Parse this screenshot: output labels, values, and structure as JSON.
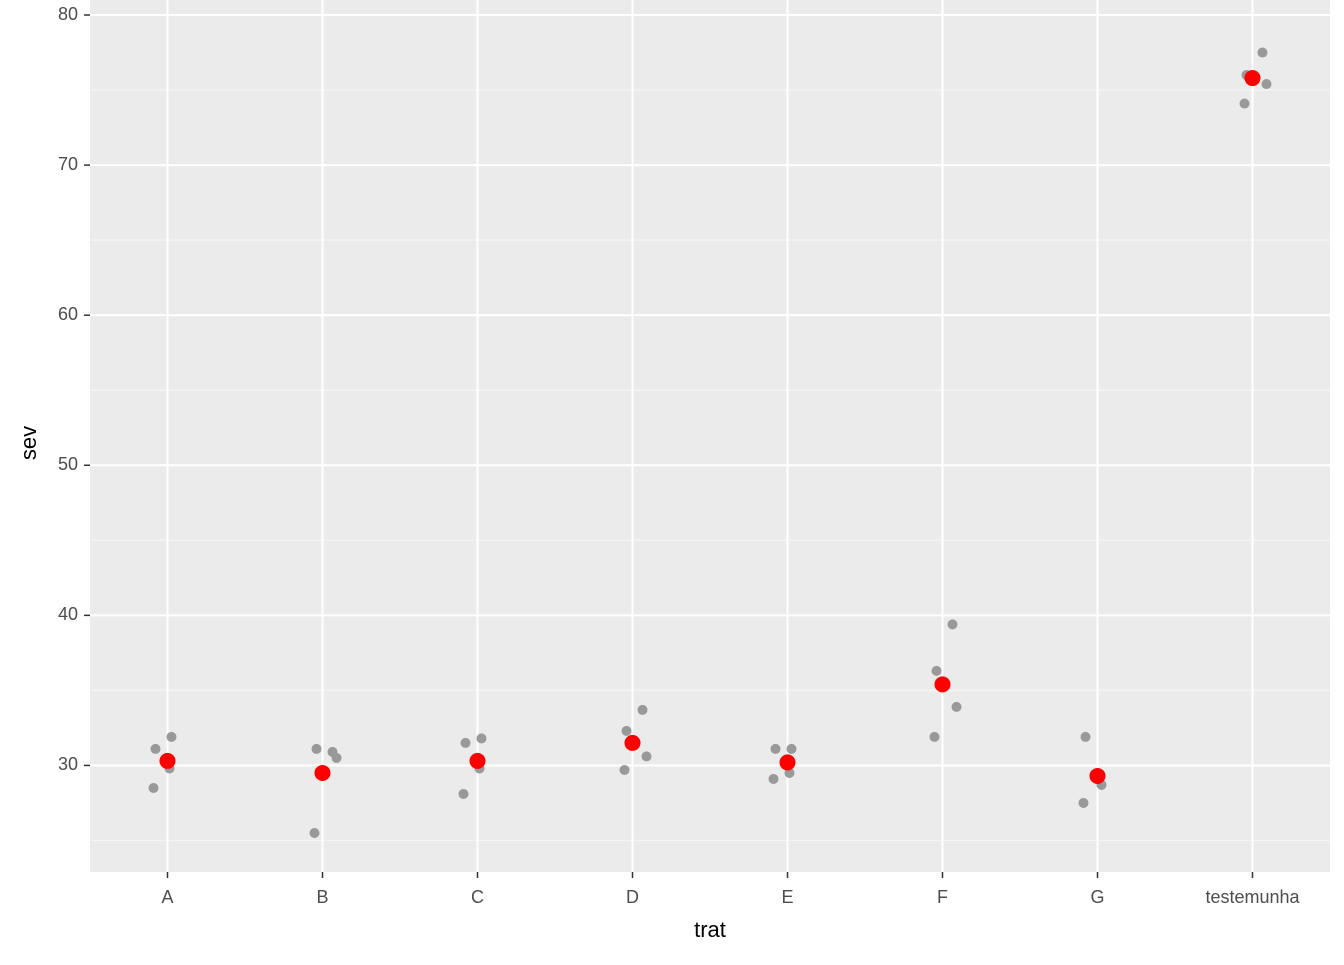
{
  "chart_data": {
    "type": "strip",
    "x_label": "trat",
    "y_label": "sev",
    "categories": [
      "A",
      "B",
      "C",
      "D",
      "E",
      "F",
      "G",
      "testemunha"
    ],
    "points": [
      [
        31.1,
        31.9,
        28.5,
        29.8
      ],
      [
        30.9,
        31.1,
        30.5,
        25.5
      ],
      [
        31.5,
        31.8,
        28.1,
        29.8
      ],
      [
        33.7,
        32.3,
        30.6,
        29.7
      ],
      [
        31.1,
        31.1,
        29.1,
        29.5
      ],
      [
        39.4,
        36.3,
        33.9,
        31.9
      ],
      [
        31.9,
        28.7,
        27.5,
        29.1
      ],
      [
        77.5,
        76.0,
        75.4,
        74.1
      ]
    ],
    "point_color": "#999999",
    "means": [
      30.3,
      29.5,
      30.3,
      31.5,
      30.2,
      35.4,
      29.3,
      75.8
    ],
    "mean_color": "#ff0000",
    "ylim": [
      22.9,
      81
    ],
    "yticks": [
      30,
      40,
      50,
      60,
      70,
      80
    ],
    "minor_yticks": [
      25,
      35,
      45,
      55,
      65,
      75
    ],
    "grid": true
  }
}
